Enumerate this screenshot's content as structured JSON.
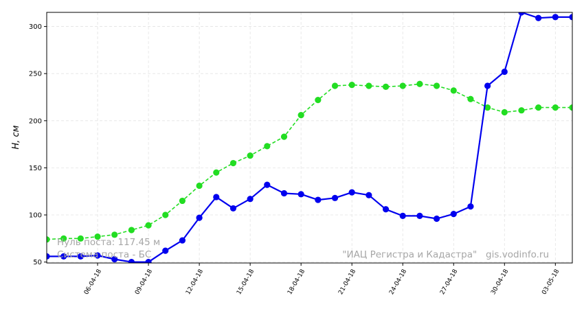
{
  "chart_data": {
    "type": "line",
    "ylabel": "H, см",
    "ylim": [
      49,
      315
    ],
    "y_ticks": [
      50,
      100,
      150,
      200,
      250,
      300
    ],
    "x": [
      "03-04-18",
      "04-04-18",
      "05-04-18",
      "06-04-18",
      "07-04-18",
      "08-04-18",
      "09-04-18",
      "10-04-18",
      "11-04-18",
      "12-04-18",
      "13-04-18",
      "14-04-18",
      "15-04-18",
      "16-04-18",
      "17-04-18",
      "18-04-18",
      "19-04-18",
      "20-04-18",
      "21-04-18",
      "22-04-18",
      "23-04-18",
      "24-04-18",
      "25-04-18",
      "26-04-18",
      "27-04-18",
      "28-04-18",
      "29-04-18",
      "30-04-18",
      "01-05-18",
      "02-05-18",
      "03-05-18",
      "04-05-18"
    ],
    "x_tick_labels": [
      "06-04-18",
      "09-04-18",
      "12-04-18",
      "15-04-18",
      "18-04-18",
      "21-04-18",
      "24-04-18",
      "27-04-18",
      "30-04-18",
      "03-05-18"
    ],
    "grid": true,
    "series": [
      {
        "style": "dashed",
        "color": "#22dd22",
        "values": [
          74,
          75,
          75,
          77,
          79,
          84,
          89,
          100,
          115,
          131,
          145,
          155,
          163,
          173,
          183,
          206,
          222,
          237,
          238,
          237,
          236,
          237,
          239,
          237,
          232,
          223,
          214,
          209,
          211,
          214,
          214,
          214
        ]
      },
      {
        "style": "solid",
        "color": "#0000ee",
        "values": [
          56,
          56,
          56,
          57,
          53,
          50,
          50,
          62,
          73,
          97,
          119,
          107,
          117,
          132,
          123,
          122,
          116,
          118,
          124,
          121,
          106,
          99,
          99,
          96,
          101,
          109,
          237,
          252,
          315,
          309,
          310,
          310
        ]
      }
    ],
    "annotations": {
      "zero_line": "Нуль поста: 117.45 м",
      "height_system": "Система поста - БС",
      "source": "\"ИАЦ Регистра и Кадастра\"   gis.vodinfo.ru"
    }
  }
}
